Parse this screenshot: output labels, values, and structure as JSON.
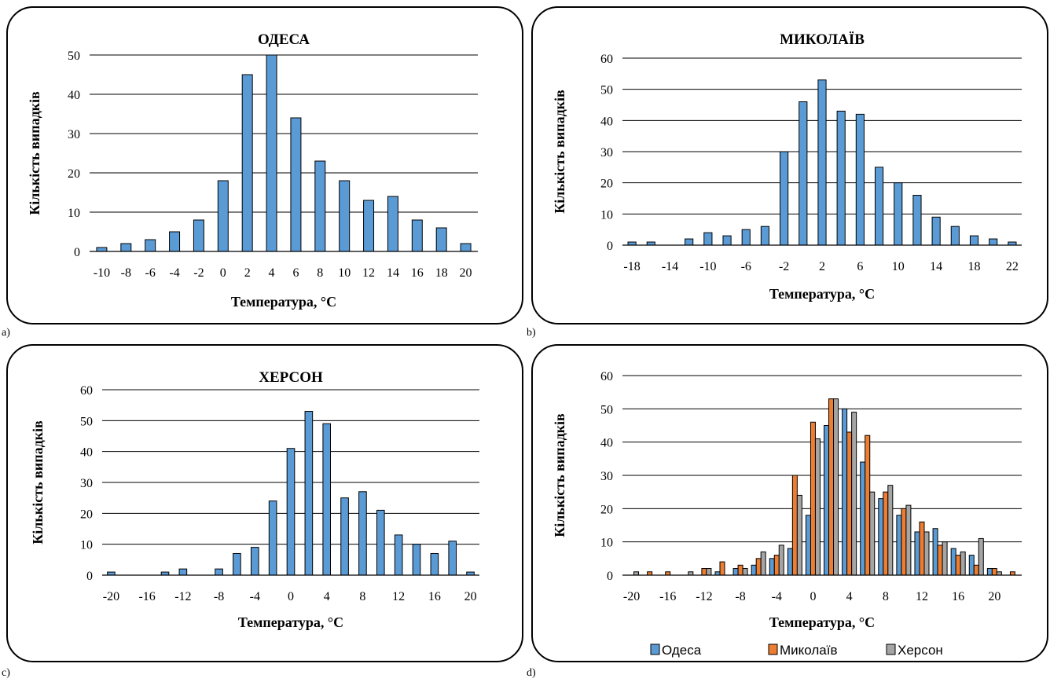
{
  "colors": {
    "odesa": "#5B9BD5",
    "mykolaiv": "#ED7D31",
    "kherson": "#A5A5A5"
  },
  "chart_data": [
    {
      "id": "a",
      "panel_letter": "a)",
      "type": "bar",
      "title": "ОДЕСА",
      "xlabel": "Температура, °C",
      "ylabel": "Кількість випадків",
      "categories": [
        -10,
        -8,
        -6,
        -4,
        -2,
        0,
        2,
        4,
        6,
        8,
        10,
        12,
        14,
        16,
        18,
        20
      ],
      "xtick_labels": [
        "-10",
        "-8",
        "-6",
        "-4",
        "-2",
        "0",
        "2",
        "4",
        "6",
        "8",
        "10",
        "12",
        "14",
        "16",
        "18",
        "20"
      ],
      "ylim": [
        0,
        50
      ],
      "yticks": [
        0,
        10,
        20,
        30,
        40,
        50
      ],
      "grid": true,
      "series": [
        {
          "color": "#5B9BD5",
          "values": [
            1,
            2,
            3,
            5,
            8,
            18,
            45,
            50,
            34,
            23,
            18,
            13,
            14,
            8,
            6,
            2
          ]
        }
      ]
    },
    {
      "id": "b",
      "panel_letter": "b)",
      "type": "bar",
      "title": "МИКОЛАЇВ",
      "xlabel": "Температура, °C",
      "ylabel": "Кількість випадків",
      "categories": [
        -18,
        -16,
        -14,
        -12,
        -10,
        -8,
        -6,
        -4,
        -2,
        0,
        2,
        4,
        6,
        8,
        10,
        12,
        14,
        16,
        18,
        20,
        22
      ],
      "xtick_labels": [
        "-18",
        "",
        "-14",
        "",
        "-10",
        "",
        "-6",
        "",
        "-2",
        "",
        "2",
        "",
        "6",
        "",
        "10",
        "",
        "14",
        "",
        "18",
        "",
        "22"
      ],
      "ylim": [
        0,
        60
      ],
      "yticks": [
        0,
        10,
        20,
        30,
        40,
        50,
        60
      ],
      "grid": true,
      "series": [
        {
          "color": "#5B9BD5",
          "values": [
            1,
            1,
            0,
            2,
            4,
            3,
            5,
            6,
            30,
            46,
            53,
            43,
            42,
            25,
            20,
            16,
            9,
            6,
            3,
            2,
            1
          ]
        }
      ]
    },
    {
      "id": "c",
      "panel_letter": "c)",
      "type": "bar",
      "title": "ХЕРСОН",
      "xlabel": "Температура, °C",
      "ylabel": "Кількість випадків",
      "categories": [
        -20,
        -18,
        -16,
        -14,
        -12,
        -10,
        -8,
        -6,
        -4,
        -2,
        0,
        2,
        4,
        6,
        8,
        10,
        12,
        14,
        16,
        18,
        20
      ],
      "xtick_labels": [
        "-20",
        "",
        "-16",
        "",
        "-12",
        "",
        "-8",
        "",
        "-4",
        "",
        "0",
        "",
        "4",
        "",
        "8",
        "",
        "12",
        "",
        "16",
        "",
        "20"
      ],
      "ylim": [
        0,
        60
      ],
      "yticks": [
        0,
        10,
        20,
        30,
        40,
        50,
        60
      ],
      "grid": true,
      "series": [
        {
          "color": "#5B9BD5",
          "values": [
            1,
            0,
            0,
            1,
            2,
            0,
            2,
            7,
            9,
            24,
            41,
            53,
            49,
            25,
            27,
            21,
            13,
            10,
            7,
            11,
            1
          ]
        }
      ]
    },
    {
      "id": "d",
      "panel_letter": "d)",
      "type": "bar",
      "title": "",
      "xlabel": "Температура, °C",
      "ylabel": "Кількість випадків",
      "categories": [
        -20,
        -18,
        -16,
        -14,
        -12,
        -10,
        -8,
        -6,
        -4,
        -2,
        0,
        2,
        4,
        6,
        8,
        10,
        12,
        14,
        16,
        18,
        20,
        22
      ],
      "xtick_labels": [
        "-20",
        "",
        "-16",
        "",
        "-12",
        "",
        "-8",
        "",
        "-4",
        "",
        "0",
        "",
        "4",
        "",
        "8",
        "",
        "12",
        "",
        "16",
        "",
        "20",
        ""
      ],
      "ylim": [
        0,
        60
      ],
      "yticks": [
        0,
        10,
        20,
        30,
        40,
        50,
        60
      ],
      "grid": true,
      "legend": "bottom",
      "series": [
        {
          "name": "Одеса",
          "color": "#5B9BD5",
          "values": [
            0,
            0,
            0,
            0,
            0,
            1,
            2,
            3,
            5,
            8,
            18,
            45,
            50,
            34,
            23,
            18,
            13,
            14,
            8,
            6,
            2,
            0
          ]
        },
        {
          "name": "Миколаїв",
          "color": "#ED7D31",
          "values": [
            0,
            1,
            1,
            0,
            2,
            4,
            3,
            5,
            6,
            30,
            46,
            53,
            43,
            42,
            25,
            20,
            16,
            9,
            6,
            3,
            2,
            1
          ]
        },
        {
          "name": "Херсон",
          "color": "#A5A5A5",
          "values": [
            1,
            0,
            0,
            1,
            2,
            0,
            2,
            7,
            9,
            24,
            41,
            53,
            49,
            25,
            27,
            21,
            13,
            10,
            7,
            11,
            1,
            0
          ]
        }
      ]
    }
  ]
}
